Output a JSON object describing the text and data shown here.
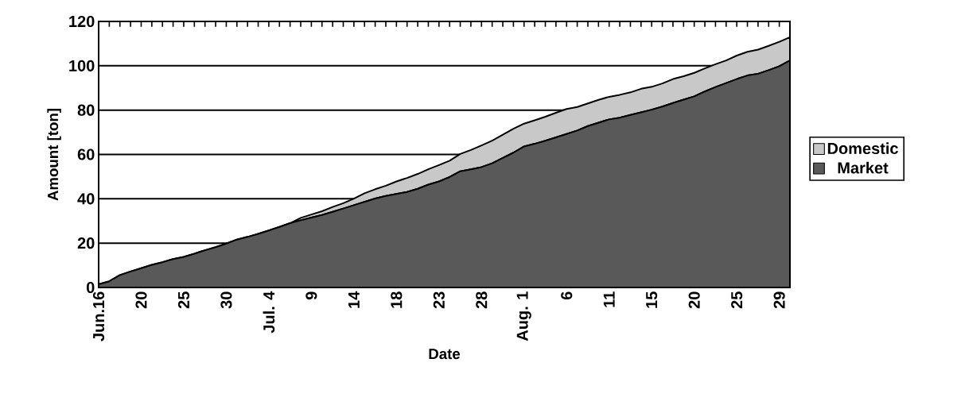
{
  "chart_data": {
    "type": "area",
    "xlabel": "Date",
    "ylabel": "Amount [ton]",
    "categories": [
      "Jun.16",
      null,
      null,
      null,
      "20",
      null,
      null,
      null,
      "25",
      null,
      null,
      null,
      "30",
      null,
      null,
      null,
      "Jul. 4",
      null,
      null,
      null,
      "9",
      null,
      null,
      null,
      "14",
      null,
      null,
      null,
      "18",
      null,
      null,
      null,
      "23",
      null,
      null,
      null,
      "28",
      null,
      null,
      null,
      "Aug. 1",
      null,
      null,
      null,
      "6",
      null,
      null,
      null,
      "11",
      null,
      null,
      null,
      "15",
      null,
      null,
      null,
      "20",
      null,
      null,
      null,
      "25",
      null,
      null,
      null,
      "29",
      null
    ],
    "series": [
      {
        "name": "Market",
        "color": "#595959",
        "values": [
          1.4,
          2.8,
          5.6,
          7.2,
          8.7,
          10.2,
          11.4,
          12.8,
          13.8,
          15.2,
          16.8,
          18.2,
          19.8,
          21.6,
          22.8,
          24.2,
          25.7,
          27.3,
          29.0,
          30.3,
          31.5,
          32.7,
          34.1,
          35.6,
          37.1,
          38.6,
          40.1,
          41.3,
          42.2,
          43.1,
          44.5,
          46.4,
          47.8,
          49.8,
          52.4,
          53.3,
          54.3,
          56.0,
          58.4,
          60.8,
          63.6,
          64.8,
          66.2,
          67.7,
          69.2,
          70.8,
          72.8,
          74.3,
          75.8,
          76.6,
          77.8,
          79.0,
          80.2,
          81.6,
          83.2,
          84.7,
          86.2,
          88.4,
          90.4,
          92.2,
          94.0,
          95.6,
          96.4,
          98.0,
          99.8,
          102.4
        ]
      },
      {
        "name": "Domestic",
        "color": "#c8c8c8",
        "values": [
          0,
          0,
          0,
          0,
          0,
          0,
          0,
          0,
          0,
          0,
          0,
          0,
          0,
          0,
          0,
          0,
          0,
          0,
          0,
          1.1,
          1.4,
          1.7,
          2.2,
          2.4,
          3.0,
          3.9,
          4.2,
          4.6,
          5.6,
          6.3,
          6.7,
          6.9,
          7.4,
          7.4,
          7.8,
          8.7,
          9.8,
          10.2,
          10.5,
          10.8,
          10.3,
          10.6,
          10.8,
          11.1,
          11.3,
          10.6,
          10.2,
          10.3,
          10.2,
          10.3,
          10.2,
          10.6,
          10.3,
          10.4,
          10.8,
          10.6,
          10.6,
          10.4,
          10.3,
          10.2,
          10.6,
          10.7,
          10.9,
          11.0,
          11.0,
          10.5
        ]
      }
    ],
    "stacked": true,
    "ylim": [
      0,
      120
    ],
    "yticks": [
      0,
      20,
      40,
      60,
      80,
      100,
      120
    ],
    "grid": "y",
    "legend": "right"
  }
}
